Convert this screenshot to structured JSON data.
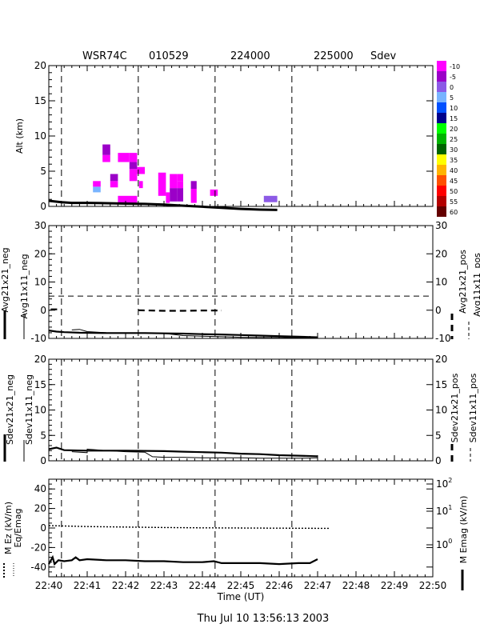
{
  "header": {
    "radar": "WSR74C",
    "date": "010529",
    "start": "224000",
    "end": "225000",
    "product": "Sdev"
  },
  "footer_timestamp": "Thu Jul 10 13:56:13 2003",
  "x_axis": {
    "label": "Time (UT)",
    "ticks": [
      "22:40",
      "22:41",
      "22:42",
      "22:43",
      "22:44",
      "22:45",
      "22:46",
      "22:47",
      "22:48",
      "22:49",
      "22:50"
    ],
    "range_minutes": [
      0,
      10
    ]
  },
  "legend": {
    "labels": [
      "-10",
      "-5",
      "0",
      "5",
      "10",
      "15",
      "20",
      "25",
      "30",
      "35",
      "40",
      "45",
      "50",
      "55",
      "60"
    ],
    "colors": [
      "#ff00ff",
      "#9b00c8",
      "#8c5ae6",
      "#78b4ff",
      "#0050ff",
      "#00008c",
      "#00ff00",
      "#00b400",
      "#006400",
      "#ffff00",
      "#ffb400",
      "#ff5000",
      "#ff0000",
      "#b40000",
      "#640000"
    ]
  },
  "chart_data": [
    {
      "type": "heatmap",
      "title": "WSR74C 010529 224000 225000 Sdev",
      "ylabel": "Alt (km)",
      "xlabel": "",
      "ylim": [
        0,
        20
      ],
      "yticks": [
        "0",
        "5",
        "10",
        "15",
        "20"
      ],
      "vlines_minutes": [
        0.33,
        2.33,
        4.33,
        6.33
      ],
      "cells": [
        {
          "t0": 1.15,
          "t1": 1.35,
          "z0": 2.0,
          "z1": 2.8,
          "v": 5
        },
        {
          "t0": 1.15,
          "t1": 1.35,
          "z0": 2.8,
          "z1": 3.6,
          "v": -10
        },
        {
          "t0": 1.4,
          "t1": 1.6,
          "z0": 6.3,
          "z1": 7.3,
          "v": -10
        },
        {
          "t0": 1.4,
          "t1": 1.6,
          "z0": 7.3,
          "z1": 8.8,
          "v": -5
        },
        {
          "t0": 1.6,
          "t1": 1.8,
          "z0": 2.7,
          "z1": 3.6,
          "v": -10
        },
        {
          "t0": 1.6,
          "t1": 1.8,
          "z0": 3.6,
          "z1": 4.6,
          "v": -5
        },
        {
          "t0": 1.8,
          "t1": 2.1,
          "z0": 6.3,
          "z1": 7.6,
          "v": -10
        },
        {
          "t0": 2.1,
          "t1": 2.3,
          "z0": 6.3,
          "z1": 7.6,
          "v": -10
        },
        {
          "t0": 2.1,
          "t1": 2.3,
          "z0": 5.3,
          "z1": 6.3,
          "v": -5
        },
        {
          "t0": 2.1,
          "t1": 2.3,
          "z0": 3.6,
          "z1": 5.3,
          "v": -10
        },
        {
          "t0": 2.3,
          "t1": 2.5,
          "z0": 4.6,
          "z1": 5.6,
          "v": -10
        },
        {
          "t0": 1.8,
          "t1": 2.3,
          "z0": 0.3,
          "z1": 1.5,
          "v": -10
        },
        {
          "t0": 2.35,
          "t1": 2.45,
          "z0": 2.6,
          "z1": 3.6,
          "v": -10
        },
        {
          "t0": 2.85,
          "t1": 3.05,
          "z0": 1.5,
          "z1": 4.8,
          "v": -10
        },
        {
          "t0": 3.05,
          "t1": 3.15,
          "z0": 0.5,
          "z1": 2.0,
          "v": -10
        },
        {
          "t0": 3.15,
          "t1": 3.35,
          "z0": 0.7,
          "z1": 2.6,
          "v": -5
        },
        {
          "t0": 3.15,
          "t1": 3.35,
          "z0": 2.6,
          "z1": 4.6,
          "v": -10
        },
        {
          "t0": 3.35,
          "t1": 3.5,
          "z0": 0.7,
          "z1": 2.6,
          "v": -5
        },
        {
          "t0": 3.35,
          "t1": 3.5,
          "z0": 2.6,
          "z1": 3.6,
          "v": -10
        },
        {
          "t0": 3.35,
          "t1": 3.5,
          "z0": 3.6,
          "z1": 4.6,
          "v": -10
        },
        {
          "t0": 3.7,
          "t1": 3.85,
          "z0": 0.5,
          "z1": 2.5,
          "v": -10
        },
        {
          "t0": 3.7,
          "t1": 3.85,
          "z0": 2.5,
          "z1": 3.6,
          "v": -5
        },
        {
          "t0": 4.2,
          "t1": 4.4,
          "z0": 1.5,
          "z1": 2.4,
          "v": -10
        },
        {
          "t0": 5.6,
          "t1": 5.95,
          "z0": 0.6,
          "z1": 1.5,
          "v": 0
        }
      ],
      "ground_line": {
        "t": [
          0,
          0.33,
          0.6,
          1.0,
          1.5,
          2.0,
          2.5,
          3.0,
          3.5,
          4.0,
          4.5,
          5.0,
          5.5,
          5.95
        ],
        "z": [
          0.8,
          0.6,
          0.5,
          0.5,
          0.45,
          0.4,
          0.35,
          0.25,
          0.1,
          -0.05,
          -0.2,
          -0.35,
          -0.45,
          -0.5
        ]
      }
    },
    {
      "type": "line",
      "ylabel_left": "Avg21x21_neg",
      "ylabel_left2": "Avg11x11_neg",
      "ylabel_right": "Avg21x21_pos",
      "ylabel_right2": "Avg11x11_pos",
      "ylim": [
        -10,
        30
      ],
      "yticks": [
        "-10",
        "0",
        "10",
        "20",
        "30"
      ],
      "hline": 5,
      "vlines_minutes": [
        0.33,
        2.33,
        4.33,
        6.33
      ],
      "series": [
        {
          "name": "Avg21x21_neg",
          "t": [
            0,
            0.2,
            0.4,
            0.8,
            1.5,
            2.0,
            2.5,
            3.0,
            3.5,
            4.0,
            4.5,
            5.0,
            5.5,
            6.0,
            6.5,
            7.0
          ],
          "v": [
            -7.2,
            -7.6,
            -7.8,
            -8.0,
            -8.1,
            -8.1,
            -8.1,
            -8.2,
            -8.3,
            -8.5,
            -8.6,
            -8.8,
            -9.0,
            -9.2,
            -9.4,
            -9.6
          ]
        },
        {
          "name": "Avg11x11_neg",
          "t": [
            0.6,
            0.8,
            0.8,
            1.0,
            1.5,
            2.0,
            2.5,
            3.0,
            3.5,
            4.0,
            4.5,
            5.0,
            5.5,
            6.0,
            6.5,
            7.0
          ],
          "v": [
            -7.0,
            -6.8,
            -6.8,
            -7.6,
            -8.0,
            -8.1,
            -8.1,
            -8.2,
            -9.0,
            -9.2,
            -9.4,
            -9.6,
            -9.7,
            -9.7,
            -9.8,
            -9.8
          ]
        },
        {
          "name": "Avg21x21_pos",
          "t": [
            2.33,
            3.0,
            3.5,
            4.0,
            4.5
          ],
          "v": [
            0.0,
            -0.2,
            -0.2,
            -0.1,
            -0.1
          ]
        },
        {
          "name": "Avg11x11_pos",
          "t": [
            0.05,
            0.33
          ],
          "v": [
            0.3,
            0.3
          ]
        }
      ]
    },
    {
      "type": "line",
      "ylabel_left": "Sdev21x21_neg",
      "ylabel_left2": "Sdev11x11_neg",
      "ylabel_right": "Sdev21x21_pos",
      "ylabel_right2": "Sdev11x11_pos",
      "ylim": [
        0,
        20
      ],
      "yticks": [
        "0",
        "5",
        "10",
        "15",
        "20"
      ],
      "vlines_minutes": [
        0.33,
        2.33,
        4.33,
        6.33
      ],
      "series": [
        {
          "name": "Sdev21x21_neg",
          "t": [
            0,
            0.2,
            0.4,
            1.0,
            2.0,
            3.0,
            3.5,
            4.0,
            4.5,
            5.0,
            5.5,
            6.0,
            6.5,
            7.0
          ],
          "v": [
            2.3,
            2.6,
            2.1,
            2.0,
            2.0,
            1.9,
            1.8,
            1.7,
            1.6,
            1.4,
            1.3,
            1.1,
            1.0,
            0.9
          ]
        },
        {
          "name": "Sdev11x11_neg",
          "t": [
            0.6,
            1.0,
            1.0,
            1.5,
            2.0,
            2.5,
            2.7,
            3.0,
            3.5,
            4.0,
            4.5,
            5.0,
            5.5,
            6.0,
            6.5,
            7.0
          ],
          "v": [
            1.8,
            1.6,
            2.3,
            2.0,
            1.8,
            1.7,
            0.8,
            0.7,
            0.7,
            0.6,
            0.6,
            0.6,
            0.5,
            0.5,
            0.5,
            0.6
          ]
        }
      ]
    },
    {
      "type": "line",
      "ylabel_left": "M Ez (kV/m)",
      "ylabel_left2": "Eq/Emag",
      "ylabel_right": "M Emag (kV/m)",
      "ylim": [
        -50,
        50
      ],
      "yticks": [
        "-40",
        "-20",
        "0",
        "20",
        "40"
      ],
      "right_ticks": [
        "10^2",
        "10^1",
        "10^0"
      ],
      "vlines_minutes": [
        0.33,
        2.33,
        4.33,
        6.33
      ],
      "series": [
        {
          "name": "M Ez",
          "t": [
            0,
            0.1,
            0.15,
            0.25,
            0.4,
            0.6,
            0.7,
            0.8,
            1.0,
            1.5,
            2.0,
            2.5,
            3.0,
            3.5,
            4.0,
            4.3,
            4.5,
            5.0,
            5.5,
            6.0,
            6.5,
            6.8,
            7.0
          ],
          "v": [
            -37,
            -30,
            -37,
            -33,
            -34,
            -33,
            -30,
            -33,
            -32,
            -33,
            -33,
            -34,
            -34,
            -35,
            -35,
            -34,
            -36,
            -36,
            -36,
            -37,
            -36,
            -36,
            -32
          ]
        },
        {
          "name": "Eq/Emag",
          "t": [
            0,
            1,
            2,
            3,
            4,
            5,
            6,
            7,
            7.3
          ],
          "v": [
            2.5,
            1.5,
            1.0,
            0.5,
            0.2,
            0.0,
            -0.2,
            -0.3,
            -0.3
          ]
        }
      ]
    }
  ]
}
